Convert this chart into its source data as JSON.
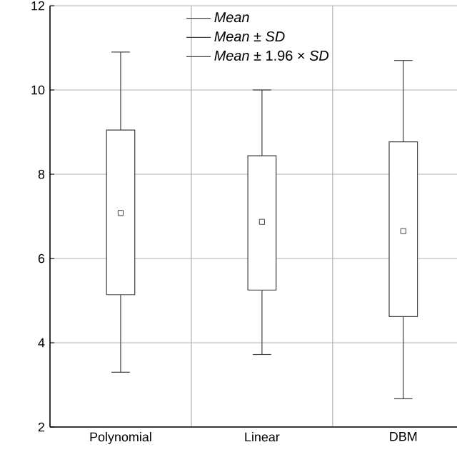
{
  "chart_data": {
    "type": "box",
    "categories": [
      "Polynomial",
      "Linear",
      "DBM"
    ],
    "boxes": [
      {
        "low": 3.3,
        "q1": 5.14,
        "q3": 9.05,
        "high": 10.9,
        "mean": 7.08
      },
      {
        "low": 3.72,
        "q1": 5.25,
        "q3": 8.44,
        "high": 10.0,
        "mean": 6.87
      },
      {
        "low": 2.67,
        "q1": 4.62,
        "q3": 8.77,
        "high": 10.7,
        "mean": 6.65
      }
    ],
    "color": "#404040",
    "ylim": [
      2,
      12
    ],
    "yticks": [
      2,
      4,
      6,
      8,
      10,
      12
    ],
    "grid": true,
    "annotations": [
      "Mean",
      "*Mean* ± *SD*",
      "*Mean* ± 1.96 × *SD*"
    ]
  }
}
